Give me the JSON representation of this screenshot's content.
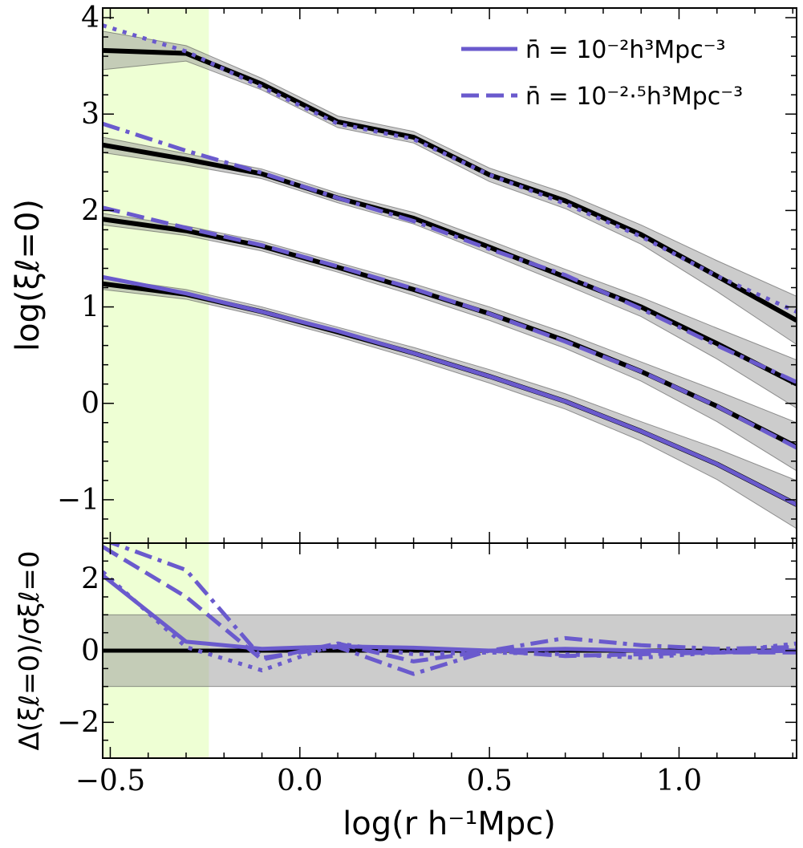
{
  "colors": {
    "model": "#6a5acd",
    "truth": "#000000",
    "band": "#999999",
    "excluded": "#eeffd4"
  },
  "chart_data": [
    {
      "type": "line",
      "panel": "top",
      "xlabel": "log(r h⁻¹Mpc)",
      "ylabel": "log(ξℓ=0)",
      "xlim": [
        -0.52,
        1.31
      ],
      "ylim": [
        -1.45,
        4.1
      ],
      "xticks": [
        -0.5,
        0.0,
        0.5,
        1.0
      ],
      "xtick_labels": [
        "−0.5",
        "0.0",
        "0.5",
        "1.0"
      ],
      "yticks": [
        -1,
        0,
        1,
        2,
        3,
        4
      ],
      "ytick_labels": [
        "−1",
        "0",
        "1",
        "2",
        "3",
        "4"
      ],
      "excluded_region": [
        -0.52,
        -0.24
      ],
      "x": [
        -0.52,
        -0.3,
        -0.1,
        0.1,
        0.3,
        0.5,
        0.7,
        0.9,
        1.1,
        1.31
      ],
      "legend": {
        "position": "top-right",
        "entries": [
          {
            "label": "n̄ = 10⁻²h³Mpc⁻³",
            "style": "solid"
          },
          {
            "label": "n̄ = 10⁻²·⁵h³Mpc⁻³",
            "style": "dashed"
          }
        ]
      },
      "series": [
        {
          "role": "truth",
          "group": 1,
          "values": [
            1.24,
            1.13,
            0.95,
            0.74,
            0.52,
            0.28,
            0.02,
            -0.29,
            -0.63,
            -1.05
          ],
          "band": [
            0.06,
            0.05,
            0.05,
            0.05,
            0.06,
            0.07,
            0.08,
            0.1,
            0.16,
            0.25
          ]
        },
        {
          "role": "model",
          "group": 1,
          "style": "solid",
          "values": [
            1.31,
            1.14,
            0.95,
            0.75,
            0.52,
            0.28,
            0.02,
            -0.29,
            -0.63,
            -1.05
          ]
        },
        {
          "role": "truth",
          "group": 2,
          "values": [
            1.91,
            1.79,
            1.63,
            1.41,
            1.18,
            0.93,
            0.65,
            0.33,
            -0.03,
            -0.45
          ],
          "band": [
            0.06,
            0.05,
            0.05,
            0.05,
            0.06,
            0.07,
            0.08,
            0.1,
            0.16,
            0.25
          ]
        },
        {
          "role": "model",
          "group": 2,
          "style": "dashed",
          "values": [
            2.03,
            1.82,
            1.64,
            1.42,
            1.19,
            0.93,
            0.64,
            0.33,
            -0.03,
            -0.46
          ]
        },
        {
          "role": "truth",
          "group": 3,
          "values": [
            2.68,
            2.53,
            2.38,
            2.13,
            1.92,
            1.62,
            1.31,
            1.0,
            0.62,
            0.2
          ],
          "band": [
            0.08,
            0.06,
            0.05,
            0.05,
            0.06,
            0.07,
            0.08,
            0.1,
            0.16,
            0.25
          ]
        },
        {
          "role": "model",
          "group": 3,
          "style": "dashdot",
          "values": [
            2.9,
            2.62,
            2.39,
            2.13,
            1.89,
            1.6,
            1.33,
            0.98,
            0.6,
            0.22
          ]
        },
        {
          "role": "truth",
          "group": 4,
          "values": [
            3.66,
            3.63,
            3.31,
            2.92,
            2.76,
            2.37,
            2.1,
            1.75,
            1.32,
            0.86
          ],
          "band": [
            0.2,
            0.08,
            0.06,
            0.06,
            0.06,
            0.07,
            0.08,
            0.1,
            0.16,
            0.25
          ]
        },
        {
          "role": "model",
          "group": 4,
          "style": "dotted",
          "values": [
            3.92,
            3.65,
            3.28,
            2.9,
            2.74,
            2.37,
            2.07,
            1.73,
            1.32,
            0.95
          ]
        }
      ]
    },
    {
      "type": "line",
      "panel": "bottom",
      "ylabel": "Δ(ξℓ=0)/σξℓ=0",
      "xlim": [
        -0.52,
        1.31
      ],
      "ylim": [
        -3,
        3
      ],
      "yticks": [
        -2,
        0,
        2
      ],
      "ytick_labels": [
        "−2",
        "0",
        "2"
      ],
      "sigma_band": [
        -1,
        1
      ],
      "x": [
        -0.52,
        -0.3,
        -0.1,
        0.1,
        0.3,
        0.5,
        0.7,
        0.9,
        1.1,
        1.31
      ],
      "series": [
        {
          "role": "truth",
          "style": "solid",
          "values": [
            0,
            0,
            0,
            0,
            0,
            0,
            0,
            0,
            0,
            0
          ]
        },
        {
          "role": "model",
          "style": "solid",
          "values": [
            2.1,
            0.25,
            0.05,
            0.12,
            0.08,
            0.0,
            0.05,
            0.0,
            -0.05,
            0.0
          ]
        },
        {
          "role": "model",
          "style": "dashed",
          "values": [
            2.9,
            1.5,
            -0.25,
            0.2,
            -0.3,
            0.0,
            -0.15,
            -0.1,
            -0.05,
            -0.05
          ]
        },
        {
          "role": "model",
          "style": "dashdot",
          "values": [
            3.1,
            2.25,
            -0.2,
            0.1,
            -0.65,
            0.0,
            0.35,
            0.15,
            0.05,
            0.1
          ]
        },
        {
          "role": "model",
          "style": "dotted",
          "values": [
            2.2,
            0.1,
            -0.55,
            0.2,
            -0.1,
            -0.05,
            -0.1,
            -0.2,
            -0.05,
            0.2
          ]
        }
      ]
    }
  ]
}
